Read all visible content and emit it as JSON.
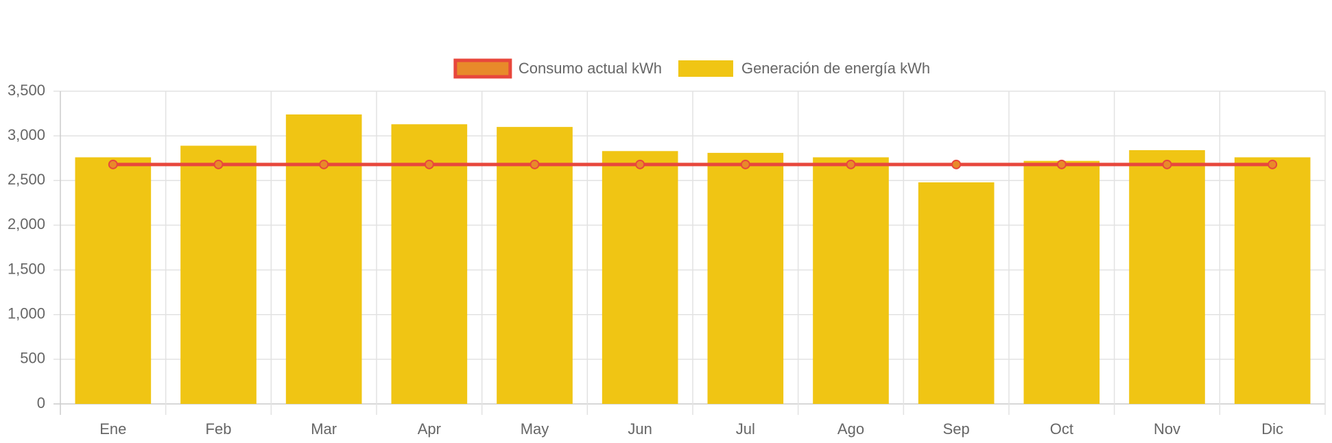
{
  "chart_data": {
    "type": "bar",
    "categories": [
      "Ene",
      "Feb",
      "Mar",
      "Apr",
      "May",
      "Jun",
      "Jul",
      "Ago",
      "Sep",
      "Oct",
      "Nov",
      "Dic"
    ],
    "series": [
      {
        "name": "Consumo actual kWh",
        "type": "line",
        "color": "#e8473c",
        "point_color": "#e88a2a",
        "values": [
          2680,
          2680,
          2680,
          2680,
          2680,
          2680,
          2680,
          2680,
          2680,
          2680,
          2680,
          2680
        ]
      },
      {
        "name": "Generación de energía kWh",
        "type": "bar",
        "color": "#f0c514",
        "values": [
          2760,
          2890,
          3240,
          3130,
          3100,
          2830,
          2810,
          2760,
          2480,
          2720,
          2840,
          2760
        ]
      }
    ],
    "ylim": [
      0,
      3500
    ],
    "yticks": [
      0,
      500,
      {
        "value": 1000,
        "label": "1,000"
      },
      {
        "value": 1500,
        "label": "1,500"
      },
      {
        "value": 2000,
        "label": "2,000"
      },
      {
        "value": 2500,
        "label": "2,500"
      },
      {
        "value": 3000,
        "label": "3,000"
      },
      {
        "value": 3500,
        "label": "3,500"
      }
    ],
    "grid": true,
    "legend": "top"
  }
}
